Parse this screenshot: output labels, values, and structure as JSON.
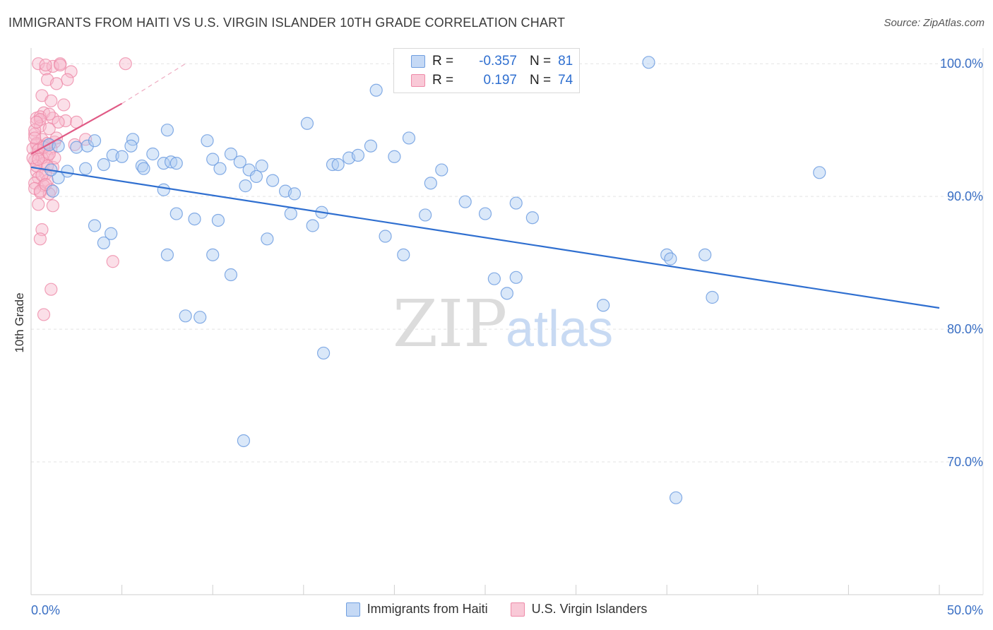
{
  "header": {
    "title": "IMMIGRANTS FROM HAITI VS U.S. VIRGIN ISLANDER 10TH GRADE CORRELATION CHART",
    "source": "Source: ZipAtlas.com"
  },
  "watermark": {
    "zip": "ZIP",
    "atlas": "atlas"
  },
  "legend": {
    "r_label": "R =",
    "n_label": "N =",
    "rows": [
      {
        "r": "-0.357",
        "n": "81"
      },
      {
        "r": "0.197",
        "n": "74"
      }
    ]
  },
  "chart_data": {
    "type": "scatter",
    "title": "IMMIGRANTS FROM HAITI VS U.S. VIRGIN ISLANDER 10TH GRADE CORRELATION CHART",
    "ylabel": "10th Grade",
    "xlabel": "",
    "xlim": [
      0,
      50
    ],
    "ylim": [
      60,
      101.5
    ],
    "x_tick_labels": {
      "min": "0.0%",
      "max": "50.0%"
    },
    "y_ticks": [
      {
        "value": 100,
        "label": "100.0%"
      },
      {
        "value": 90,
        "label": "90.0%"
      },
      {
        "value": 80,
        "label": "80.0%"
      },
      {
        "value": 70,
        "label": "70.0%"
      }
    ],
    "colors": {
      "blue_fill": "#aecbf2",
      "blue_stroke": "#6f9ee0",
      "blue_line": "#2f6fd0",
      "pink_fill": "#f7b8cb",
      "pink_stroke": "#ee8aa8",
      "pink_line": "#e05a85",
      "grid": "#e3e3e3",
      "tick_label": "#3a6fc4"
    },
    "series": [
      {
        "name": "Immigrants from Haiti",
        "r": -0.357,
        "n": 81,
        "trend": {
          "x": [
            0,
            50
          ],
          "y": [
            92.2,
            81.6
          ]
        },
        "points": [
          [
            1.0,
            93.9
          ],
          [
            1.5,
            93.8
          ],
          [
            2.0,
            91.9
          ],
          [
            1.5,
            91.4
          ],
          [
            1.2,
            90.4
          ],
          [
            2.5,
            93.7
          ],
          [
            3.1,
            93.8
          ],
          [
            3.5,
            94.2
          ],
          [
            4.0,
            92.4
          ],
          [
            3.0,
            92.1
          ],
          [
            4.5,
            93.1
          ],
          [
            5.0,
            93.0
          ],
          [
            5.6,
            94.3
          ],
          [
            5.5,
            93.8
          ],
          [
            6.1,
            92.3
          ],
          [
            6.2,
            92.1
          ],
          [
            6.7,
            93.2
          ],
          [
            7.3,
            92.5
          ],
          [
            7.7,
            92.6
          ],
          [
            8.0,
            92.5
          ],
          [
            7.5,
            95.0
          ],
          [
            7.3,
            90.5
          ],
          [
            8.0,
            88.7
          ],
          [
            9.7,
            94.2
          ],
          [
            10.0,
            92.8
          ],
          [
            10.4,
            92.1
          ],
          [
            11.0,
            93.2
          ],
          [
            11.5,
            92.6
          ],
          [
            12.0,
            92.0
          ],
          [
            12.7,
            92.3
          ],
          [
            12.4,
            91.5
          ],
          [
            13.3,
            91.2
          ],
          [
            11.8,
            90.8
          ],
          [
            14.0,
            90.4
          ],
          [
            14.5,
            90.2
          ],
          [
            15.2,
            95.5
          ],
          [
            15.5,
            87.8
          ],
          [
            16.0,
            88.8
          ],
          [
            16.6,
            92.4
          ],
          [
            16.9,
            92.4
          ],
          [
            17.5,
            92.9
          ],
          [
            18.0,
            93.1
          ],
          [
            18.7,
            93.8
          ],
          [
            19.0,
            98.0
          ],
          [
            20.0,
            93.0
          ],
          [
            20.8,
            94.4
          ],
          [
            21.7,
            88.6
          ],
          [
            22.0,
            91.0
          ],
          [
            22.6,
            92.0
          ],
          [
            23.9,
            89.6
          ],
          [
            25.0,
            88.7
          ],
          [
            26.7,
            89.5
          ],
          [
            27.6,
            88.4
          ],
          [
            14.3,
            88.7
          ],
          [
            13.0,
            86.8
          ],
          [
            19.5,
            87.0
          ],
          [
            20.5,
            85.6
          ],
          [
            10.3,
            88.2
          ],
          [
            9.0,
            88.3
          ],
          [
            4.4,
            87.2
          ],
          [
            3.5,
            87.8
          ],
          [
            7.5,
            85.6
          ],
          [
            10.0,
            85.6
          ],
          [
            11.0,
            84.1
          ],
          [
            25.5,
            83.8
          ],
          [
            26.7,
            83.9
          ],
          [
            26.2,
            82.7
          ],
          [
            31.5,
            81.8
          ],
          [
            8.5,
            81.0
          ],
          [
            9.3,
            80.9
          ],
          [
            16.1,
            78.2
          ],
          [
            11.7,
            71.6
          ],
          [
            43.4,
            91.8
          ],
          [
            35.0,
            85.6
          ],
          [
            35.2,
            85.3
          ],
          [
            37.1,
            85.6
          ],
          [
            37.5,
            82.4
          ],
          [
            35.5,
            67.3
          ],
          [
            34.0,
            100.1
          ],
          [
            1.1,
            92.0
          ],
          [
            4.0,
            86.5
          ]
        ]
      },
      {
        "name": "U.S. Virgin Islanders",
        "r": 0.197,
        "n": 74,
        "trend": {
          "x": [
            0,
            5.0
          ],
          "y": [
            93.2,
            97.0
          ],
          "dashed_to": {
            "x": 8.5,
            "y": 100.0
          }
        },
        "points": [
          [
            0.4,
            100.0
          ],
          [
            0.8,
            99.6
          ],
          [
            1.2,
            99.8
          ],
          [
            1.6,
            100.0
          ],
          [
            2.2,
            99.4
          ],
          [
            5.2,
            100.0
          ],
          [
            0.9,
            98.8
          ],
          [
            1.4,
            98.5
          ],
          [
            2.0,
            98.8
          ],
          [
            0.6,
            97.6
          ],
          [
            1.1,
            97.2
          ],
          [
            1.8,
            96.9
          ],
          [
            0.3,
            95.9
          ],
          [
            0.7,
            96.3
          ],
          [
            1.2,
            95.9
          ],
          [
            1.9,
            95.7
          ],
          [
            0.5,
            95.3
          ],
          [
            1.0,
            95.1
          ],
          [
            0.2,
            94.7
          ],
          [
            0.6,
            94.3
          ],
          [
            1.3,
            94.1
          ],
          [
            0.3,
            93.9
          ],
          [
            0.8,
            93.8
          ],
          [
            1.1,
            93.6
          ],
          [
            0.4,
            93.2
          ],
          [
            0.9,
            93.0
          ],
          [
            0.2,
            92.7
          ],
          [
            0.7,
            92.5
          ],
          [
            1.2,
            92.2
          ],
          [
            0.3,
            91.9
          ],
          [
            0.8,
            91.7
          ],
          [
            0.4,
            91.4
          ],
          [
            0.9,
            91.2
          ],
          [
            0.2,
            91.0
          ],
          [
            0.7,
            90.8
          ],
          [
            1.1,
            90.5
          ],
          [
            0.5,
            90.3
          ],
          [
            1.0,
            90.2
          ],
          [
            0.4,
            89.4
          ],
          [
            1.2,
            89.3
          ],
          [
            0.6,
            87.5
          ],
          [
            0.5,
            86.8
          ],
          [
            4.5,
            85.1
          ],
          [
            1.1,
            83.0
          ],
          [
            0.7,
            81.1
          ],
          [
            0.5,
            96.0
          ],
          [
            1.0,
            96.2
          ],
          [
            0.3,
            94.0
          ],
          [
            1.4,
            94.4
          ],
          [
            3.0,
            94.3
          ],
          [
            2.4,
            93.9
          ],
          [
            0.6,
            92.9
          ],
          [
            0.1,
            93.6
          ],
          [
            0.2,
            95.0
          ],
          [
            0.5,
            95.8
          ],
          [
            1.6,
            99.9
          ],
          [
            0.8,
            99.9
          ],
          [
            0.3,
            92.3
          ],
          [
            0.9,
            94.0
          ],
          [
            0.2,
            90.6
          ],
          [
            0.6,
            91.6
          ],
          [
            0.4,
            93.5
          ],
          [
            1.3,
            92.9
          ],
          [
            0.7,
            93.7
          ],
          [
            0.1,
            92.9
          ],
          [
            1.5,
            95.6
          ],
          [
            2.5,
            95.6
          ],
          [
            0.9,
            92.3
          ],
          [
            0.3,
            95.6
          ],
          [
            0.5,
            90.4
          ],
          [
            0.8,
            90.9
          ],
          [
            0.2,
            94.4
          ],
          [
            1.0,
            93.2
          ],
          [
            0.4,
            92.8
          ]
        ]
      }
    ]
  }
}
